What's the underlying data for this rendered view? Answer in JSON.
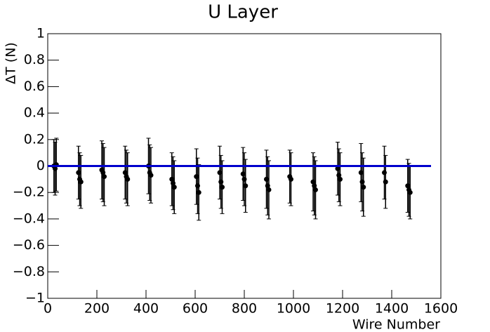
{
  "chart_data": {
    "type": "errorbar",
    "title": "U Layer",
    "x_label": "Wire Number",
    "y_label": "ΔT (N)",
    "xlim": [
      0,
      1600
    ],
    "xticks": [
      0,
      200,
      400,
      600,
      800,
      1000,
      1200,
      1400,
      1600
    ],
    "ylim": [
      -1,
      1
    ],
    "yticks": [
      {
        "value": -1,
        "label": "−1"
      },
      {
        "value": -0.8,
        "label": "−0.8"
      },
      {
        "value": -0.6,
        "label": "−0.6"
      },
      {
        "value": -0.4,
        "label": "−0.4"
      },
      {
        "value": -0.2,
        "label": "−0.2"
      },
      0,
      0.2,
      0.4,
      0.6,
      0.8,
      1
    ],
    "series": [
      {
        "color": "#000000",
        "x": [
          25,
          30,
          35,
          125,
          130,
          135,
          220,
          225,
          230,
          315,
          320,
          325,
          410,
          415,
          420,
          505,
          510,
          515,
          605,
          610,
          615,
          700,
          705,
          710,
          795,
          800,
          805,
          890,
          895,
          900,
          985,
          990,
          1080,
          1085,
          1090,
          1180,
          1185,
          1190,
          1275,
          1280,
          1285,
          1370,
          1375,
          1465,
          1470,
          1475
        ],
        "values": [
          0,
          -0.02,
          0.01,
          -0.05,
          -0.1,
          -0.12,
          -0.03,
          -0.05,
          -0.08,
          -0.05,
          -0.08,
          -0.1,
          0,
          -0.05,
          -0.07,
          -0.1,
          -0.13,
          -0.16,
          -0.08,
          -0.15,
          -0.2,
          -0.05,
          -0.12,
          -0.16,
          -0.06,
          -0.1,
          -0.15,
          -0.1,
          -0.15,
          -0.18,
          -0.08,
          -0.1,
          -0.12,
          -0.15,
          -0.18,
          -0.02,
          -0.07,
          -0.1,
          -0.05,
          -0.12,
          -0.16,
          -0.05,
          -0.12,
          -0.15,
          -0.18,
          -0.2
        ],
        "errors": [
          0.2,
          0.2,
          0.2,
          0.2,
          0.2,
          0.2,
          0.22,
          0.22,
          0.22,
          0.2,
          0.2,
          0.2,
          0.21,
          0.21,
          0.21,
          0.2,
          0.2,
          0.2,
          0.21,
          0.21,
          0.21,
          0.2,
          0.2,
          0.2,
          0.2,
          0.2,
          0.2,
          0.22,
          0.22,
          0.22,
          0.2,
          0.2,
          0.22,
          0.22,
          0.22,
          0.2,
          0.2,
          0.2,
          0.22,
          0.22,
          0.22,
          0.2,
          0.2,
          0.2,
          0.2,
          0.2
        ]
      },
      {
        "color": "#0000cc",
        "x": [
          0,
          1560
        ],
        "values": [
          0,
          0
        ]
      }
    ]
  }
}
